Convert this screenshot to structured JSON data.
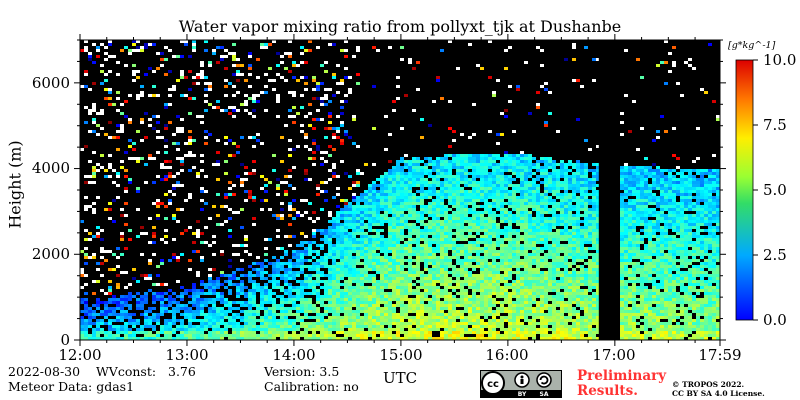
{
  "chart_data": {
    "type": "heatmap",
    "title": "Water vapor mixing ratio from pollyxt_tjk at Dushanbe",
    "xlabel": "UTC",
    "ylabel": "Height (m)",
    "x_ticks": [
      "12:00",
      "13:00",
      "14:00",
      "15:00",
      "16:00",
      "17:00",
      "17:59"
    ],
    "y_ticks": [
      "0",
      "2000",
      "4000",
      "6000"
    ],
    "ylim": [
      0,
      7000
    ],
    "xlim_hours": [
      12.0,
      17.983
    ],
    "colorbar": {
      "unit": "[g*kg^-1]",
      "range": [
        0.0,
        10.0
      ],
      "ticks": [
        "0.0",
        "2.5",
        "5.0",
        "7.5",
        "10.0"
      ],
      "colormap": "jet"
    },
    "data_gap_utc": [
      16.85,
      17.02
    ],
    "moist_layer": [
      {
        "time": 12.0,
        "top_m": 1000,
        "value": 2.5
      },
      {
        "time": 13.0,
        "top_m": 1300,
        "value": 3.0
      },
      {
        "time": 14.0,
        "top_m": 2200,
        "value": 3.8
      },
      {
        "time": 15.0,
        "top_m": 4300,
        "value": 4.5
      },
      {
        "time": 16.0,
        "top_m": 4400,
        "value": 4.5
      },
      {
        "time": 17.0,
        "top_m": 4100,
        "value": 4.2
      },
      {
        "time": 17.98,
        "top_m": 4000,
        "value": 4.0
      }
    ]
  },
  "info": {
    "date_wv": "2022-08-30    WVconst:   3.76",
    "meteor": "Meteor Data: gdas1",
    "version": "Version: 3.5",
    "calibration": "Calibration: no"
  },
  "footer": {
    "preliminary_line1": "Preliminary",
    "preliminary_line2": "Results.",
    "copyright_line1": "© TROPOS 2022.",
    "copyright_line2": "CC BY SA 4.0 License.",
    "cc_icon": "cc-by-sa-icon"
  }
}
